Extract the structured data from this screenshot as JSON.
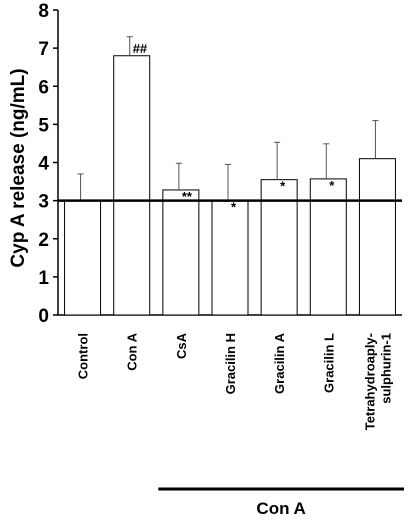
{
  "chart_data": {
    "type": "bar",
    "ylabel": "Cyp A release (ng/mL)",
    "ylim": [
      0,
      8
    ],
    "yticks": [
      "0",
      "1",
      "2",
      "3",
      "4",
      "5",
      "6",
      "7",
      "8"
    ],
    "categories": [
      "Control",
      "Con A",
      "CsA",
      "Gracilin H",
      "Gracilin A",
      "Gracilin L",
      "Tetrahydroaply-\nsulphurin-1"
    ],
    "values": [
      3.0,
      6.8,
      3.28,
      3.0,
      3.55,
      3.57,
      4.1
    ],
    "error_upper": [
      0.7,
      0.5,
      0.7,
      0.95,
      0.98,
      0.92,
      1.0
    ],
    "annotations": [
      "",
      "##",
      "**",
      "*",
      "*",
      "*",
      ""
    ],
    "reference_line": 3.0,
    "group_label": "Con A",
    "bar_color": "#ffffff",
    "line_color": "#000000"
  }
}
